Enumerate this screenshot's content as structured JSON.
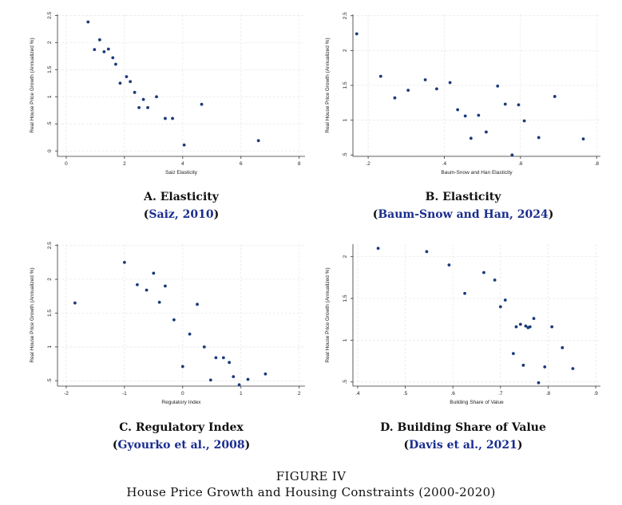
{
  "figure": {
    "label": "FIGURE IV",
    "caption": "House Price Growth and Housing Constraints (2000-2020)"
  },
  "chart_data": [
    {
      "id": "A",
      "type": "scatter",
      "panel_title": "A. Elasticity",
      "citation": "Saiz, 2010",
      "xlabel": "Saiz Elasticity",
      "ylabel": "Real House Price Growth (Annualized %)",
      "xlim": [
        -0.3,
        8.2
      ],
      "ylim": [
        -0.1,
        2.52
      ],
      "xticks": [
        0,
        2,
        4,
        6,
        8
      ],
      "xtick_labels": [
        "0",
        "2",
        "4",
        "6",
        "8"
      ],
      "yticks": [
        0,
        0.5,
        1,
        1.5,
        2,
        2.5
      ],
      "ytick_labels": [
        "0",
        ".5",
        "1",
        "1.5",
        "2",
        "2.5"
      ],
      "marker_color": "#1a3a7a",
      "x": [
        0.75,
        0.97,
        1.15,
        1.3,
        1.45,
        1.6,
        1.7,
        1.85,
        2.07,
        2.2,
        2.35,
        2.5,
        2.65,
        2.8,
        3.1,
        3.4,
        3.65,
        4.05,
        4.65,
        6.6
      ],
      "y": [
        2.38,
        1.87,
        2.05,
        1.83,
        1.88,
        1.72,
        1.6,
        1.25,
        1.37,
        1.28,
        1.08,
        0.8,
        0.95,
        0.8,
        1.0,
        0.6,
        0.6,
        0.11,
        0.86,
        0.19
      ]
    },
    {
      "id": "B",
      "type": "scatter",
      "panel_title": "B. Elasticity",
      "citation": "Baum-Snow and Han, 2024",
      "xlabel": "Baum-Snow and Han Elasticity",
      "ylabel": "Real House Price Growth (Annualized %)",
      "xlim": [
        0.16,
        0.81
      ],
      "ylim": [
        0.48,
        2.52
      ],
      "xticks": [
        0.2,
        0.4,
        0.6,
        0.8
      ],
      "xtick_labels": [
        ".2",
        ".4",
        ".6",
        ".8"
      ],
      "yticks": [
        0.5,
        1,
        1.5,
        2,
        2.5
      ],
      "ytick_labels": [
        ".5",
        "1",
        "1.5",
        "2",
        "2.5"
      ],
      "marker_color": "#1a3a7a",
      "x": [
        0.17,
        0.233,
        0.27,
        0.305,
        0.35,
        0.38,
        0.415,
        0.435,
        0.455,
        0.47,
        0.49,
        0.51,
        0.54,
        0.56,
        0.578,
        0.595,
        0.61,
        0.648,
        0.69,
        0.765
      ],
      "y": [
        2.24,
        1.63,
        1.32,
        1.43,
        1.58,
        1.45,
        1.54,
        1.15,
        1.06,
        0.74,
        1.07,
        0.83,
        1.49,
        1.23,
        0.5,
        1.22,
        0.99,
        0.75,
        1.34,
        0.73
      ]
    },
    {
      "id": "C",
      "type": "scatter",
      "panel_title": "C. Regulatory Index",
      "citation": "Gyourko et al., 2008",
      "xlabel": "Regulatory Index",
      "ylabel": "Real House Price Growth (Annualized %)",
      "xlim": [
        -2.15,
        2.1
      ],
      "ylim": [
        0.42,
        2.52
      ],
      "xticks": [
        -2,
        -1,
        0,
        1,
        2
      ],
      "xtick_labels": [
        "-2",
        "-1",
        "0",
        "1",
        "2"
      ],
      "yticks": [
        0.5,
        1,
        1.5,
        2,
        2.5
      ],
      "ytick_labels": [
        ".5",
        "1",
        "1.5",
        "2",
        "2.5"
      ],
      "marker_color": "#1a3a7a",
      "x": [
        -1.85,
        -1.0,
        -0.78,
        -0.62,
        -0.5,
        -0.4,
        -0.3,
        -0.15,
        0.0,
        0.12,
        0.25,
        0.37,
        0.48,
        0.57,
        0.7,
        0.8,
        0.87,
        0.97,
        1.12,
        1.42
      ],
      "y": [
        1.65,
        2.25,
        1.92,
        1.84,
        2.09,
        1.66,
        1.9,
        1.4,
        0.71,
        1.19,
        1.63,
        1.0,
        0.51,
        0.84,
        0.84,
        0.77,
        0.56,
        0.44,
        0.52,
        0.6
      ]
    },
    {
      "id": "D",
      "type": "scatter",
      "panel_title": "D. Building Share of Value",
      "citation": "Davis et al., 2021",
      "xlabel": "Building Share of Value",
      "ylabel": "Real House Price Growth (Annualized %)",
      "xlim": [
        0.39,
        0.91
      ],
      "ylim": [
        0.45,
        2.15
      ],
      "xticks": [
        0.4,
        0.5,
        0.6,
        0.7,
        0.8,
        0.9
      ],
      "xtick_labels": [
        ".4",
        ".5",
        ".6",
        ".7",
        ".8",
        ".9"
      ],
      "yticks": [
        0.5,
        1,
        1.5,
        2
      ],
      "ytick_labels": [
        ".5",
        "1",
        "1.5",
        "2"
      ],
      "marker_color": "#1a3a7a",
      "x": [
        0.443,
        0.545,
        0.592,
        0.625,
        0.665,
        0.688,
        0.7,
        0.71,
        0.727,
        0.733,
        0.742,
        0.748,
        0.753,
        0.758,
        0.762,
        0.77,
        0.78,
        0.793,
        0.808,
        0.83,
        0.852
      ],
      "y": [
        2.1,
        2.06,
        1.9,
        1.56,
        1.81,
        1.72,
        1.4,
        1.48,
        0.84,
        1.16,
        1.19,
        0.7,
        1.17,
        1.15,
        1.16,
        1.26,
        0.49,
        0.68,
        1.16,
        0.91,
        0.66
      ]
    }
  ]
}
